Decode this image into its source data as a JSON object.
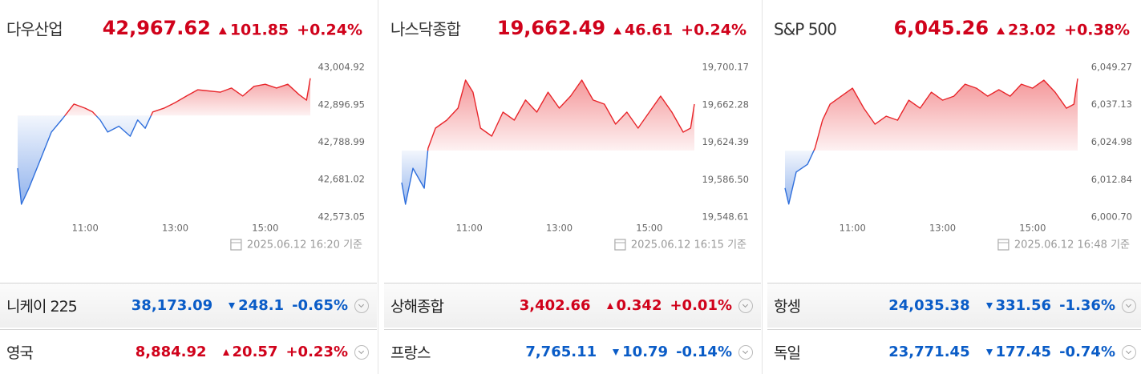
{
  "chart_data": [
    {
      "type": "line",
      "title": "다우산업",
      "price": {
        "value": 42967.62,
        "label": "42,967.62"
      },
      "change": 101.85,
      "change_pct": {
        "value": 0.24,
        "label": "+0.24%"
      },
      "direction": "up",
      "timestamp": "2025.06.12 16:20 기준",
      "x": [
        "09:30",
        "09:35",
        "09:45",
        "10:00",
        "10:15",
        "10:30",
        "10:45",
        "11:00",
        "11:10",
        "11:20",
        "11:30",
        "11:45",
        "12:00",
        "12:10",
        "12:20",
        "12:30",
        "12:45",
        "13:00",
        "13:15",
        "13:30",
        "14:00",
        "14:15",
        "14:30",
        "14:45",
        "15:00",
        "15:15",
        "15:30",
        "15:45",
        "15:55",
        "16:00"
      ],
      "values": [
        42714,
        42610,
        42656,
        42737,
        42818,
        42857,
        42899,
        42887,
        42876,
        42853,
        42818,
        42835,
        42806,
        42853,
        42829,
        42876,
        42887,
        42903,
        42922,
        42940,
        42933,
        42945,
        42922,
        42950,
        42956,
        42945,
        42956,
        42926,
        42910,
        42973
      ],
      "ylim": [
        42573.05,
        43004.92
      ],
      "yticks": [
        {
          "value": 43004.92,
          "label": "43,004.92"
        },
        {
          "value": 42896.95,
          "label": "42,896.95"
        },
        {
          "value": 42788.99,
          "label": "42,788.99"
        },
        {
          "value": 42681.02,
          "label": "42,681.02"
        },
        {
          "value": 42573.05,
          "label": "42,573.05"
        }
      ],
      "xticks": [
        "11:00",
        "13:00",
        "15:00"
      ],
      "grid": false,
      "up_color": "#e8262b",
      "down_color": "#2f6fdc"
    },
    {
      "type": "line",
      "title": "나스닥종합",
      "price": {
        "value": 19662.49,
        "label": "19,662.49"
      },
      "change": 46.61,
      "change_pct": {
        "value": 0.24,
        "label": "+0.24%"
      },
      "direction": "up",
      "timestamp": "2025.06.12 16:15 기준",
      "x": [
        "09:30",
        "09:35",
        "09:45",
        "10:00",
        "10:05",
        "10:15",
        "10:30",
        "10:45",
        "10:55",
        "11:05",
        "11:15",
        "11:30",
        "11:45",
        "12:00",
        "12:15",
        "12:30",
        "12:45",
        "13:00",
        "13:15",
        "13:30",
        "13:45",
        "14:00",
        "14:15",
        "14:30",
        "14:45",
        "15:00",
        "15:15",
        "15:30",
        "15:45",
        "15:55",
        "16:00"
      ],
      "values": [
        19583.5,
        19561.6,
        19598,
        19577.8,
        19618,
        19638.6,
        19646.7,
        19658.8,
        19687.2,
        19675,
        19638.6,
        19630.5,
        19654.8,
        19646.7,
        19667,
        19654.8,
        19675,
        19658.8,
        19671,
        19687.2,
        19667,
        19662.9,
        19642.6,
        19654.8,
        19638.6,
        19654.8,
        19671,
        19654.8,
        19634.5,
        19638.6,
        19662.9
      ],
      "ylim": [
        19548.61,
        19700.17
      ],
      "yticks": [
        {
          "value": 19700.17,
          "label": "19,700.17"
        },
        {
          "value": 19662.28,
          "label": "19,662.28"
        },
        {
          "value": 19624.39,
          "label": "19,624.39"
        },
        {
          "value": 19586.5,
          "label": "19,586.50"
        },
        {
          "value": 19548.61,
          "label": "19,548.61"
        }
      ],
      "xticks": [
        "11:00",
        "13:00",
        "15:00"
      ],
      "grid": false,
      "up_color": "#e8262b",
      "down_color": "#2f6fdc"
    },
    {
      "type": "line",
      "title": "S&P 500",
      "price": {
        "value": 6045.26,
        "label": "6,045.26"
      },
      "change": 23.02,
      "change_pct": {
        "value": 0.38,
        "label": "+0.38%"
      },
      "direction": "up",
      "timestamp": "2025.06.12 16:48 기준",
      "x": [
        "09:30",
        "09:35",
        "09:45",
        "10:00",
        "10:10",
        "10:20",
        "10:30",
        "10:45",
        "11:00",
        "11:15",
        "11:30",
        "11:45",
        "12:00",
        "12:15",
        "12:30",
        "12:45",
        "13:00",
        "13:15",
        "13:30",
        "13:45",
        "14:00",
        "14:15",
        "14:30",
        "14:45",
        "15:00",
        "15:15",
        "15:30",
        "15:45",
        "15:55",
        "16:00"
      ],
      "values": [
        6010.1,
        6004.9,
        6015.3,
        6017.8,
        6023,
        6032.1,
        6037.3,
        6039.9,
        6042.5,
        6036,
        6030.8,
        6033.4,
        6032.1,
        6038.6,
        6036,
        6041.2,
        6038.6,
        6039.9,
        6043.8,
        6042.5,
        6039.9,
        6042,
        6039.9,
        6043.8,
        6042.5,
        6045.1,
        6041.2,
        6036,
        6037.3,
        6045.6
      ],
      "ylim": [
        6000.7,
        6049.27
      ],
      "yticks": [
        {
          "value": 6049.27,
          "label": "6,049.27"
        },
        {
          "value": 6037.13,
          "label": "6,037.13"
        },
        {
          "value": 6024.98,
          "label": "6,024.98"
        },
        {
          "value": 6012.84,
          "label": "6,012.84"
        },
        {
          "value": 6000.7,
          "label": "6,000.70"
        }
      ],
      "xticks": [
        "11:00",
        "13:00",
        "15:00"
      ],
      "grid": false,
      "up_color": "#e8262b",
      "down_color": "#2f6fdc"
    }
  ],
  "markets": [
    {
      "name": "니케이 225",
      "price": "38,173.09",
      "change": "248.1",
      "change_pct": "-0.65%",
      "direction": "down"
    },
    {
      "name": "상해종합",
      "price": "3,402.66",
      "change": "0.342",
      "change_pct": "+0.01%",
      "direction": "up"
    },
    {
      "name": "항셍",
      "price": "24,035.38",
      "change": "331.56",
      "change_pct": "-1.36%",
      "direction": "down"
    },
    {
      "name": "영국",
      "price": "8,884.92",
      "change": "20.57",
      "change_pct": "+0.23%",
      "direction": "up"
    },
    {
      "name": "프랑스",
      "price": "7,765.11",
      "change": "10.79",
      "change_pct": "-0.14%",
      "direction": "down"
    },
    {
      "name": "독일",
      "price": "23,771.45",
      "change": "177.45",
      "change_pct": "-0.74%",
      "direction": "down"
    }
  ]
}
